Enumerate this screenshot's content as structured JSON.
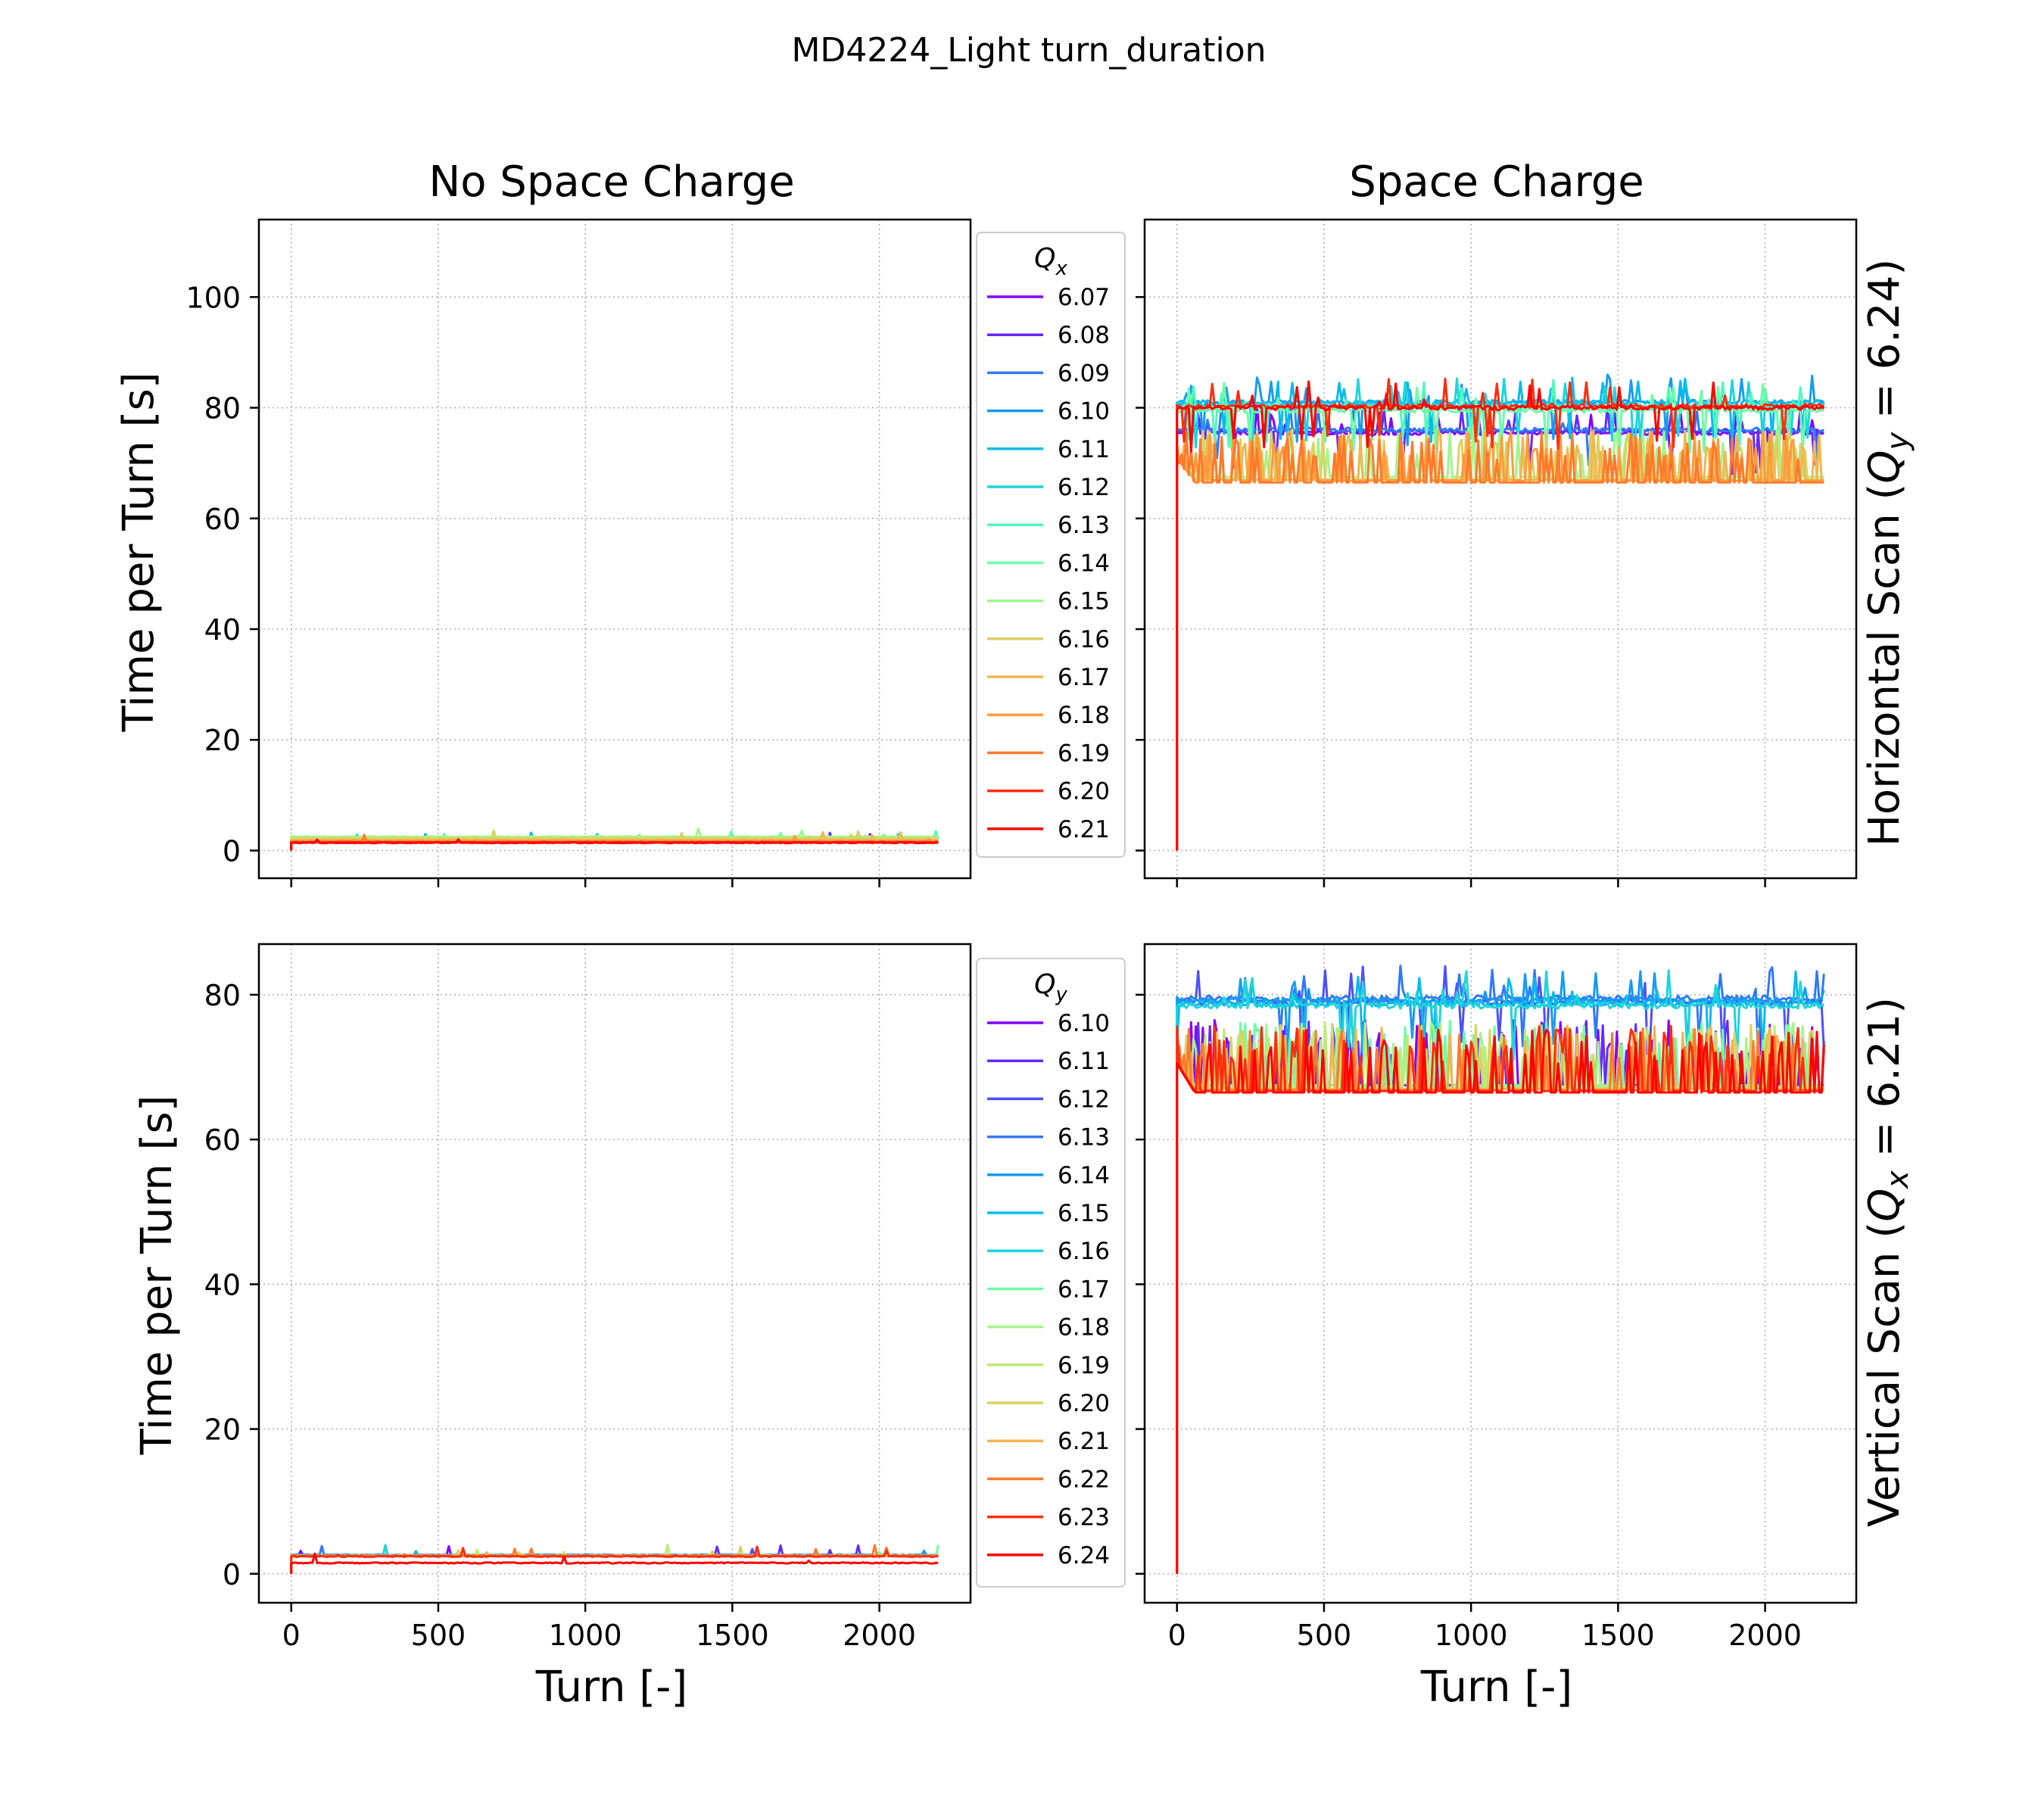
{
  "figure": {
    "suptitle": "MD4224_Light turn_duration",
    "col_titles": [
      "No Space Charge",
      "Space Charge"
    ],
    "row_labels": [
      {
        "prefix": "Horizontal Scan (",
        "sym": "Q",
        "sub": "y",
        "suffix": " = 6.24)"
      },
      {
        "prefix": "Vertical Scan (",
        "sym": "Q",
        "sub": "x",
        "suffix": " = 6.21)"
      }
    ],
    "ylabels": [
      "Time per Turn [s]",
      "Time per Turn  [s]"
    ],
    "xlabel": "Turn [-]"
  },
  "legends": [
    {
      "title_sym": "Q",
      "title_sub": "x",
      "entries": [
        "6.07",
        "6.08",
        "6.09",
        "6.10",
        "6.11",
        "6.12",
        "6.13",
        "6.14",
        "6.15",
        "6.16",
        "6.17",
        "6.18",
        "6.19",
        "6.20",
        "6.21"
      ]
    },
    {
      "title_sym": "Q",
      "title_sub": "y",
      "entries": [
        "6.10",
        "6.11",
        "6.12",
        "6.13",
        "6.14",
        "6.15",
        "6.16",
        "6.17",
        "6.18",
        "6.19",
        "6.20",
        "6.21",
        "6.22",
        "6.23",
        "6.24"
      ]
    }
  ],
  "colors": {
    "row0": [
      "#8000ff",
      "#6629fe",
      "#4c50fc",
      "#3079f7",
      "#169bf2",
      "#07bbea",
      "#1dd5dc",
      "#38eccc",
      "#50f9bb",
      "#6bfea8",
      "#a2f68a",
      "#c0e977",
      "#dbd162",
      "#f2b54f",
      "#ff9a3c",
      "#ff7a2b",
      "#ff561c",
      "#ff2d0e",
      "#ff0000"
    ],
    "row1": [
      "#8000ff",
      "#6629fe",
      "#4c50fc",
      "#3079f7",
      "#169bf2",
      "#07bbea",
      "#1dd5dc",
      "#38eccc",
      "#6bfea8",
      "#a2f68a",
      "#c0e977",
      "#dbd162",
      "#f2b54f",
      "#ff7a2b",
      "#ff2d0e",
      "#ff0000"
    ]
  },
  "chart_data": [
    {
      "panel": "top-left",
      "type": "line",
      "title": "No Space Charge",
      "ylabel": "Time per Turn [s]",
      "xlim": [
        -110,
        2310
      ],
      "ylim": [
        -5,
        114
      ],
      "xticks": [
        0,
        500,
        1000,
        1500,
        2000
      ],
      "yticks": [
        0,
        20,
        40,
        60,
        80,
        100
      ],
      "grid": true,
      "series": [
        {
          "name": "6.07",
          "level": 1.7
        },
        {
          "name": "6.08",
          "level": 1.8
        },
        {
          "name": "6.09",
          "level": 1.8
        },
        {
          "name": "6.10",
          "level": 1.8
        },
        {
          "name": "6.11",
          "level": 1.9
        },
        {
          "name": "6.12",
          "level": 2.0
        },
        {
          "name": "6.13",
          "level": 2.2
        },
        {
          "name": "6.14",
          "level": 2.4
        },
        {
          "name": "6.15",
          "level": 2.5
        },
        {
          "name": "6.16",
          "level": 2.2
        },
        {
          "name": "6.17",
          "level": 1.9
        },
        {
          "name": "6.18",
          "level": 1.7
        },
        {
          "name": "6.19",
          "level": 1.6
        },
        {
          "name": "6.20",
          "level": 1.5
        },
        {
          "name": "6.21",
          "level": 1.4
        }
      ]
    },
    {
      "panel": "top-right",
      "type": "line",
      "title": "Space Charge",
      "xlim": [
        -110,
        2310
      ],
      "ylim": [
        -5,
        114
      ],
      "xticks": [
        0,
        500,
        1000,
        1500,
        2000
      ],
      "yticks": [
        0,
        20,
        40,
        60,
        80,
        100
      ],
      "grid": true,
      "series": [
        {
          "name": "6.07",
          "level": 75.5
        },
        {
          "name": "6.08",
          "level": 75.8
        },
        {
          "name": "6.09",
          "level": 76.0
        },
        {
          "name": "6.10",
          "level": 81.0
        },
        {
          "name": "6.11",
          "level": 81.0
        },
        {
          "name": "6.12",
          "level": 80.5
        },
        {
          "name": "6.13",
          "level": 80.0
        },
        {
          "name": "6.14",
          "level": 79.5
        },
        {
          "name": "6.15",
          "level": 67.5
        },
        {
          "name": "6.16",
          "level": 67.0
        },
        {
          "name": "6.17",
          "level": 67.0
        },
        {
          "name": "6.18",
          "level": 66.8
        },
        {
          "name": "6.19",
          "level": 66.5
        },
        {
          "name": "6.20",
          "level": 80.3
        },
        {
          "name": "6.21",
          "level": 80.0
        }
      ]
    },
    {
      "panel": "bottom-left",
      "type": "line",
      "ylabel": "Time per Turn  [s]",
      "xlabel": "Turn [-]",
      "xlim": [
        -110,
        2310
      ],
      "ylim": [
        -4,
        87
      ],
      "xticks": [
        0,
        500,
        1000,
        1500,
        2000
      ],
      "yticks": [
        0,
        20,
        40,
        60,
        80
      ],
      "grid": true,
      "series": [
        {
          "name": "6.10",
          "level": 2.5
        },
        {
          "name": "6.11",
          "level": 2.5
        },
        {
          "name": "6.12",
          "level": 2.5
        },
        {
          "name": "6.13",
          "level": 2.6
        },
        {
          "name": "6.14",
          "level": 2.6
        },
        {
          "name": "6.15",
          "level": 2.5
        },
        {
          "name": "6.16",
          "level": 2.5
        },
        {
          "name": "6.17",
          "level": 2.5
        },
        {
          "name": "6.18",
          "level": 2.5
        },
        {
          "name": "6.19",
          "level": 2.5
        },
        {
          "name": "6.20",
          "level": 2.5
        },
        {
          "name": "6.21",
          "level": 2.5
        },
        {
          "name": "6.22",
          "level": 2.5
        },
        {
          "name": "6.23",
          "level": 2.4
        },
        {
          "name": "6.24",
          "level": 1.5
        }
      ]
    },
    {
      "panel": "bottom-right",
      "type": "line",
      "xlabel": "Turn [-]",
      "xlim": [
        -110,
        2310
      ],
      "ylim": [
        -4,
        87
      ],
      "xticks": [
        0,
        500,
        1000,
        1500,
        2000
      ],
      "yticks": [
        0,
        20,
        40,
        60,
        80
      ],
      "grid": true,
      "series": [
        {
          "name": "6.10",
          "level": 67.5
        },
        {
          "name": "6.11",
          "level": 67.5
        },
        {
          "name": "6.12",
          "level": 79.0
        },
        {
          "name": "6.13",
          "level": 79.5
        },
        {
          "name": "6.14",
          "level": 79.2
        },
        {
          "name": "6.15",
          "level": 78.8
        },
        {
          "name": "6.16",
          "level": 78.5
        },
        {
          "name": "6.17",
          "level": 67.5
        },
        {
          "name": "6.18",
          "level": 67.3
        },
        {
          "name": "6.19",
          "level": 67.2
        },
        {
          "name": "6.20",
          "level": 67.0
        },
        {
          "name": "6.21",
          "level": 67.0
        },
        {
          "name": "6.22",
          "level": 66.8
        },
        {
          "name": "6.23",
          "level": 66.7
        },
        {
          "name": "6.24",
          "level": 66.5
        }
      ]
    }
  ]
}
